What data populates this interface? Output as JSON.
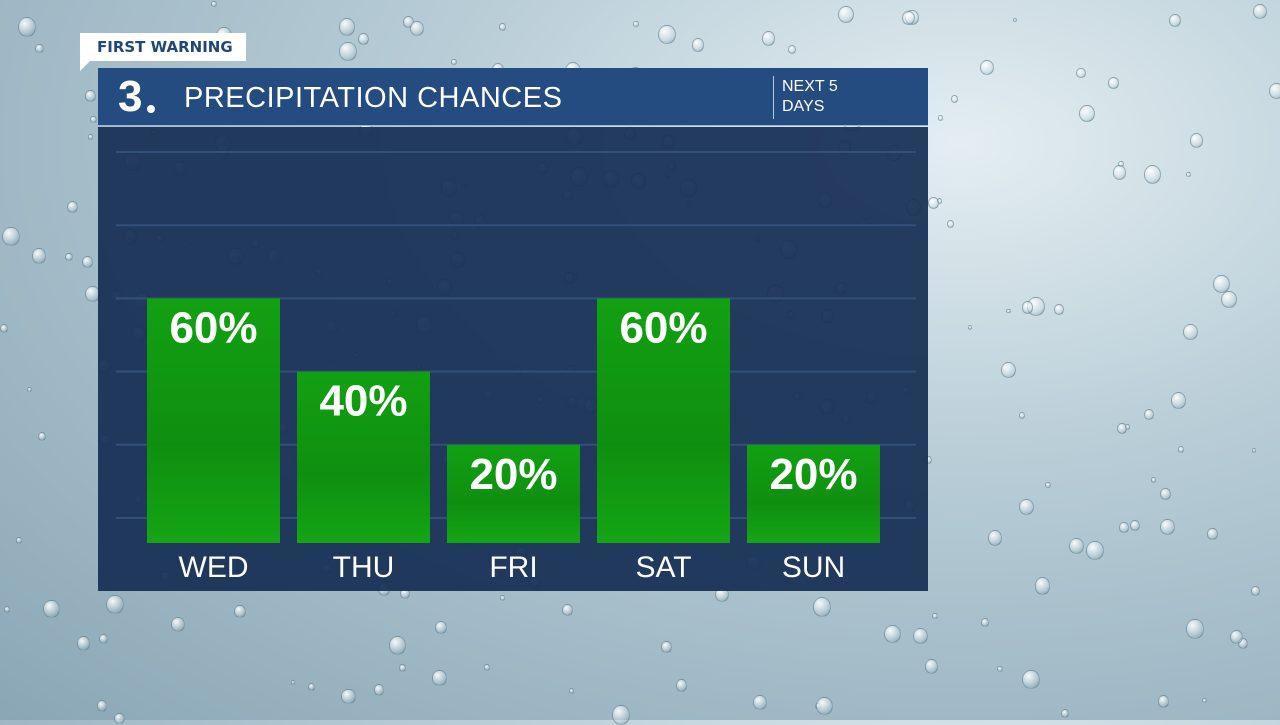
{
  "badge": "FIRST WARNING",
  "header": {
    "logo": "3",
    "title": "PRECIPITATION CHANCES",
    "subtitle_line1": "NEXT 5",
    "subtitle_line2": "DAYS"
  },
  "colors": {
    "header": "#254c80",
    "panel": "#162e54",
    "bar": "#14a014"
  },
  "chart_data": {
    "type": "bar",
    "title": "PRECIPITATION CHANCES",
    "categories": [
      "WED",
      "THU",
      "FRI",
      "SAT",
      "SUN"
    ],
    "values": [
      60,
      40,
      20,
      60,
      20
    ],
    "data_labels": [
      "60%",
      "40%",
      "20%",
      "60%",
      "20%"
    ],
    "ylim": [
      0,
      100
    ],
    "grid": true,
    "xlabel": "",
    "ylabel": ""
  }
}
